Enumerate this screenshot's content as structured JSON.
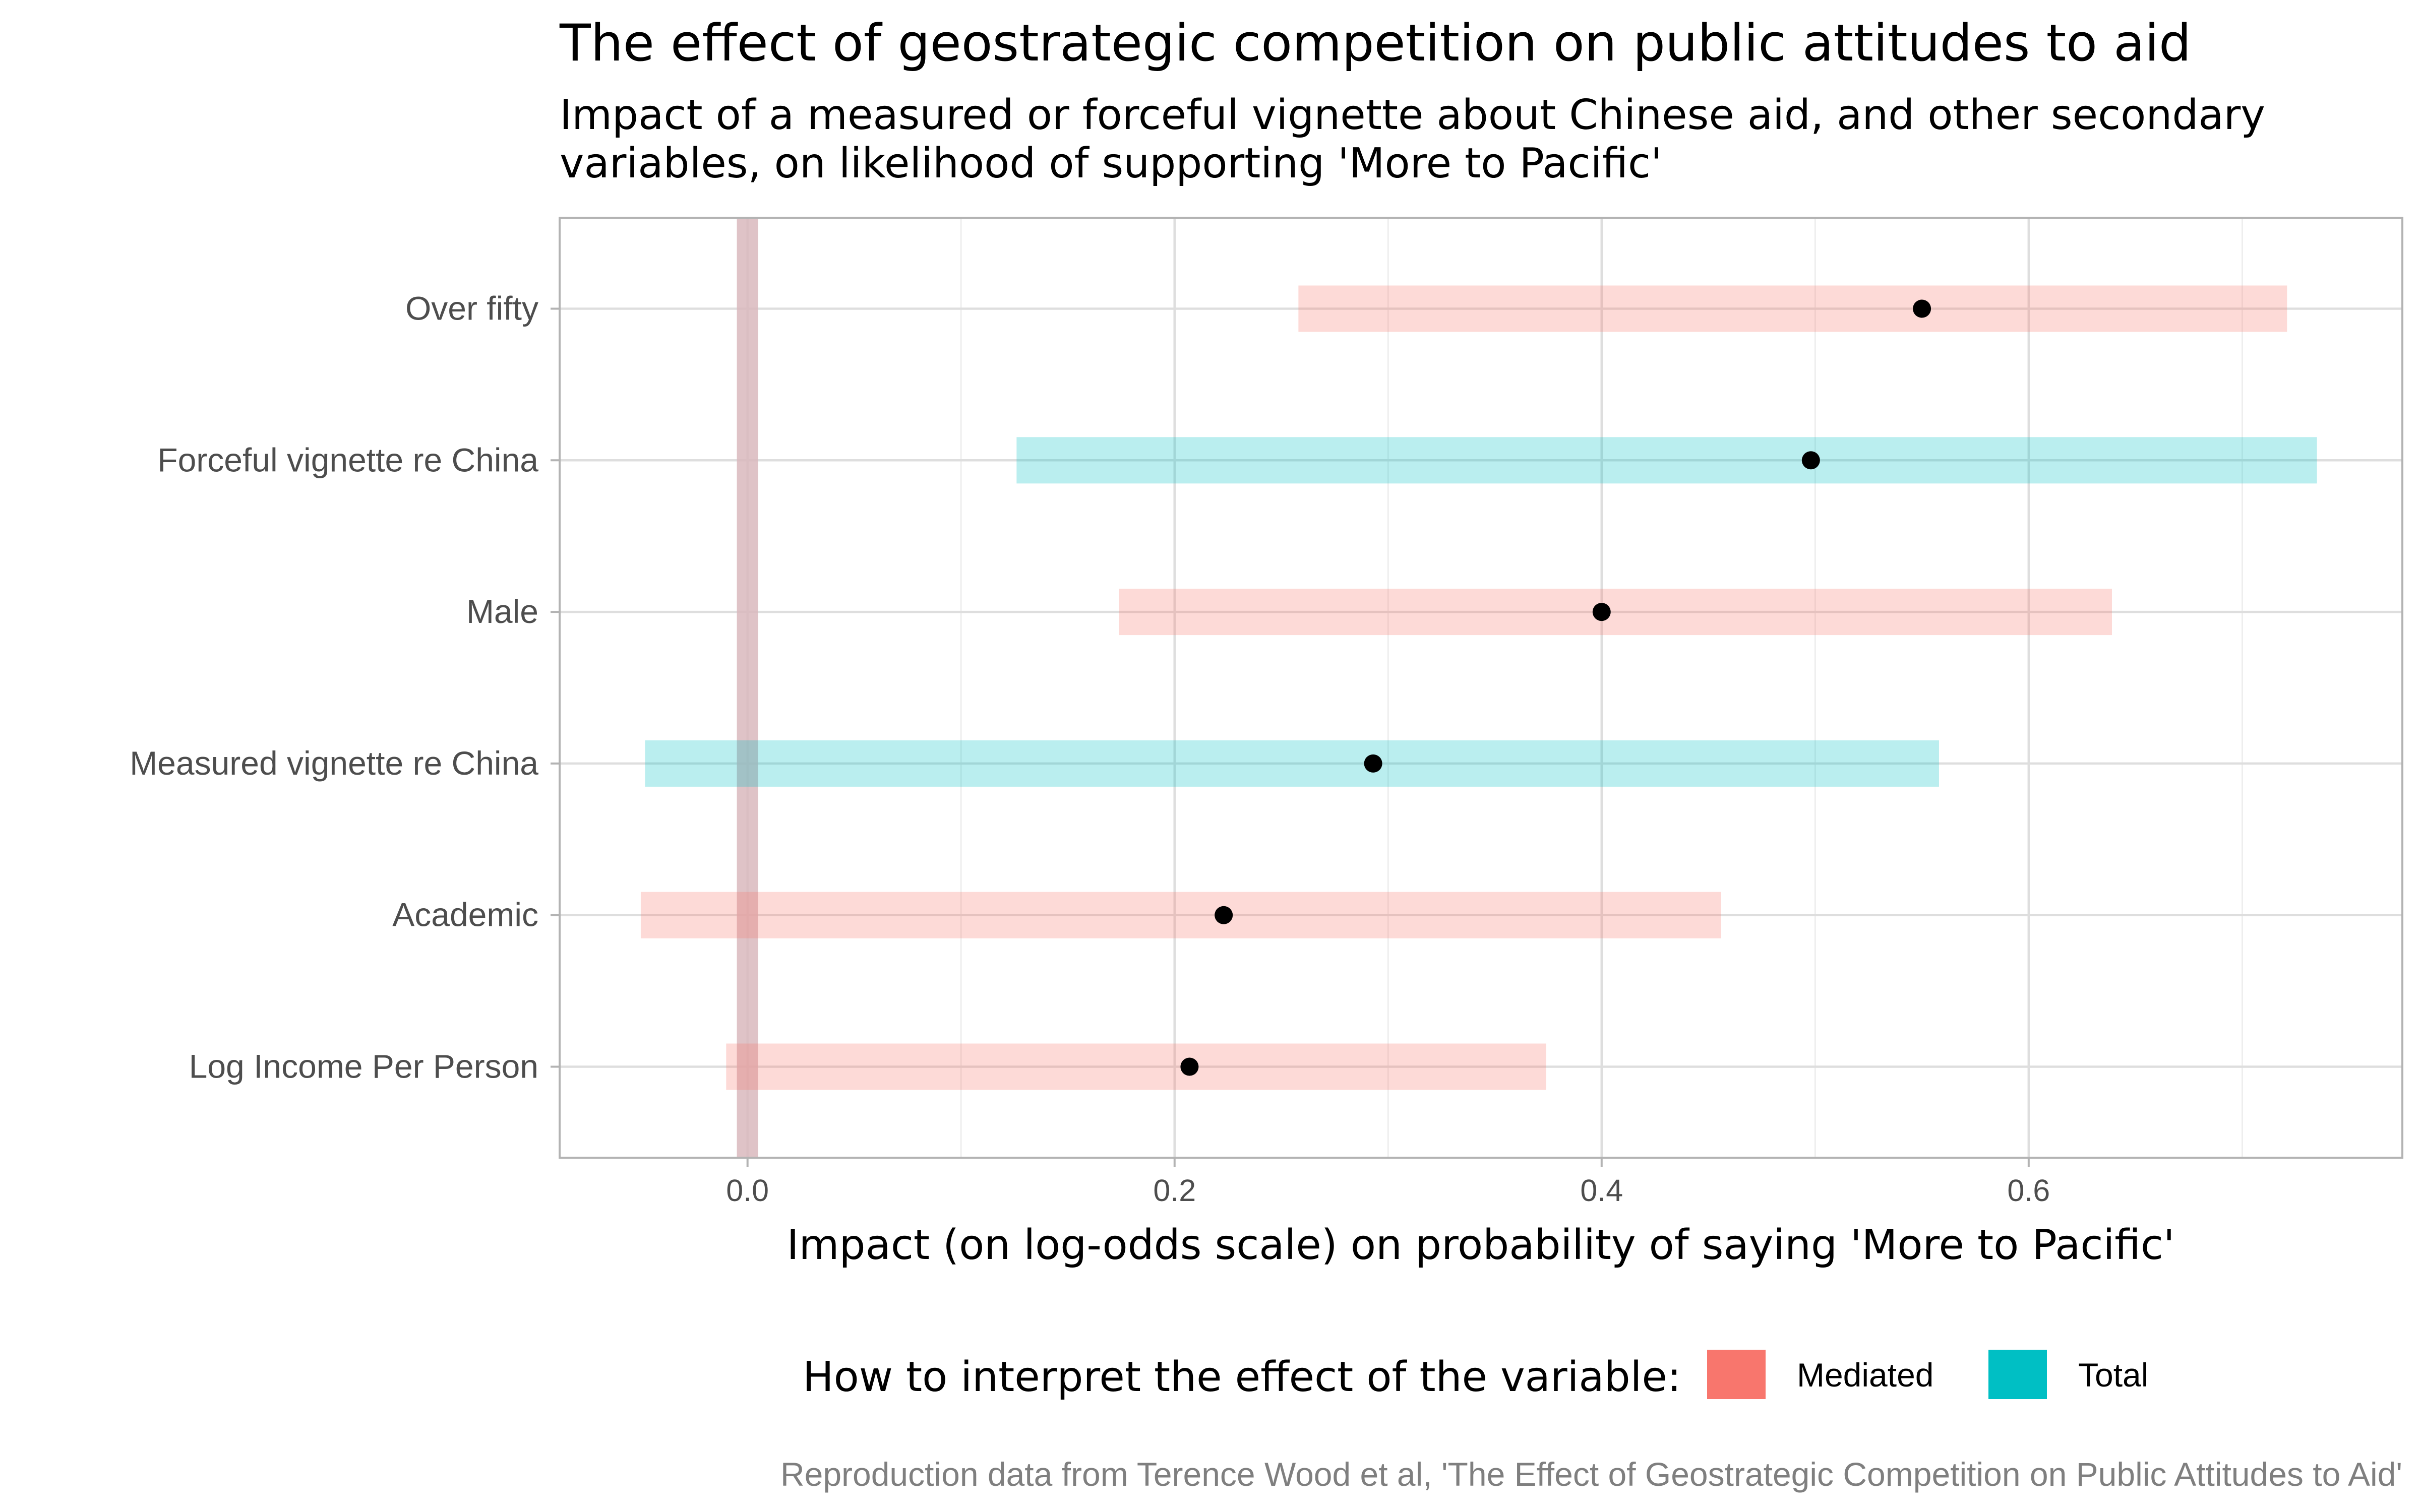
{
  "chart_data": {
    "type": "scatter",
    "title": "The effect of geostrategic competition on public attitudes to aid",
    "subtitle_lines": [
      "Impact of a measured or forceful vignette about Chinese aid, and other secondary",
      "variables, on likelihood of supporting 'More to Pacific'"
    ],
    "xlabel": "Impact (on log-odds scale) on probability of saying 'More to Pacific'",
    "ylabel": "",
    "caption": "Reproduction data from Terence Wood et al, 'The Effect of Geostrategic Competition on Public Attitudes to Aid'",
    "xlim": [
      -0.088,
      0.775
    ],
    "x_ticks": [
      0.0,
      0.2,
      0.4,
      0.6
    ],
    "x_tick_labels": [
      "0.0",
      "0.2",
      "0.4",
      "0.6"
    ],
    "grid": true,
    "reference_line": {
      "x": 0.0,
      "half_width": 0.005,
      "color": "#d9b8bd"
    },
    "categories": [
      "Over fifty",
      "Forceful vignette re China",
      "Male",
      "Measured vignette re China",
      "Academic",
      "Log Income Per Person"
    ],
    "series": [
      {
        "name": "Mediated",
        "color": "#F8766D",
        "points": [
          {
            "category": "Over fifty",
            "estimate": 0.55,
            "low": 0.258,
            "high": 0.721
          },
          {
            "category": "Male",
            "estimate": 0.4,
            "low": 0.174,
            "high": 0.639
          },
          {
            "category": "Academic",
            "estimate": 0.223,
            "low": -0.05,
            "high": 0.456
          },
          {
            "category": "Log Income Per Person",
            "estimate": 0.207,
            "low": -0.01,
            "high": 0.374
          }
        ]
      },
      {
        "name": "Total",
        "color": "#00BFC4",
        "points": [
          {
            "category": "Forceful vignette re China",
            "estimate": 0.498,
            "low": 0.126,
            "high": 0.735
          },
          {
            "category": "Measured vignette re China",
            "estimate": 0.293,
            "low": -0.048,
            "high": 0.558
          }
        ]
      }
    ],
    "legend": {
      "title": "How to interpret the effect of the variable:",
      "position": "bottom"
    }
  }
}
